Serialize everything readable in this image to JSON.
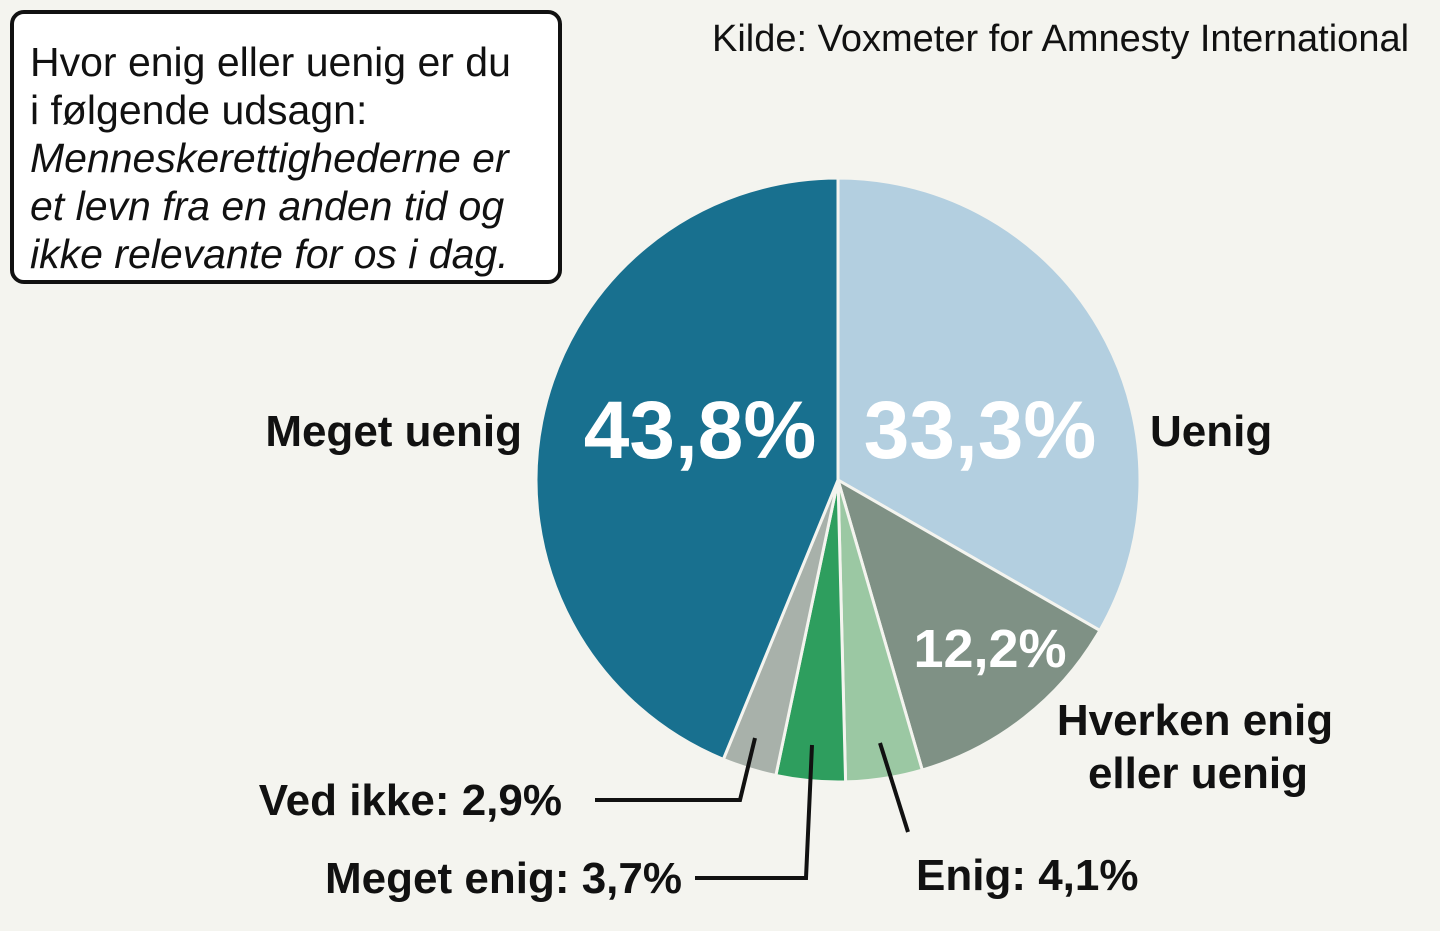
{
  "question": {
    "line1": "Hvor enig eller uenig er du",
    "line2": "i følgende udsagn:",
    "statement_lines": [
      "Menneskerettighederne er",
      "et levn fra en anden tid og",
      "ikke relevante for os i dag."
    ]
  },
  "source": "Kilde: Voxmeter for Amnesty International",
  "chart_data": {
    "type": "pie",
    "title": "",
    "slices": [
      {
        "label": "Uenig",
        "value": 33.3,
        "value_label": "33,3%",
        "color": "#b3cfe0"
      },
      {
        "label": "Hverken enig eller uenig",
        "value": 12.2,
        "value_label": "12,2%",
        "color": "#7f9185"
      },
      {
        "label": "Enig",
        "value": 4.1,
        "value_label": "4,1%",
        "color": "#9bc8a3"
      },
      {
        "label": "Meget enig",
        "value": 3.7,
        "value_label": "3,7%",
        "color": "#2e9e5e"
      },
      {
        "label": "Ved ikke",
        "value": 2.9,
        "value_label": "2,9%",
        "color": "#a8b1aa"
      },
      {
        "label": "Meget uenig",
        "value": 43.8,
        "value_label": "43,8%",
        "color": "#18708f"
      }
    ],
    "callouts": {
      "meget_uenig": "Meget uenig",
      "uenig": "Uenig",
      "hverken_line1": "Hverken enig",
      "hverken_line2": "eller uenig",
      "ved_ikke": "Ved ikke: 2,9%",
      "meget_enig": "Meget enig: 3,7%",
      "enig": "Enig: 4,1%"
    }
  }
}
